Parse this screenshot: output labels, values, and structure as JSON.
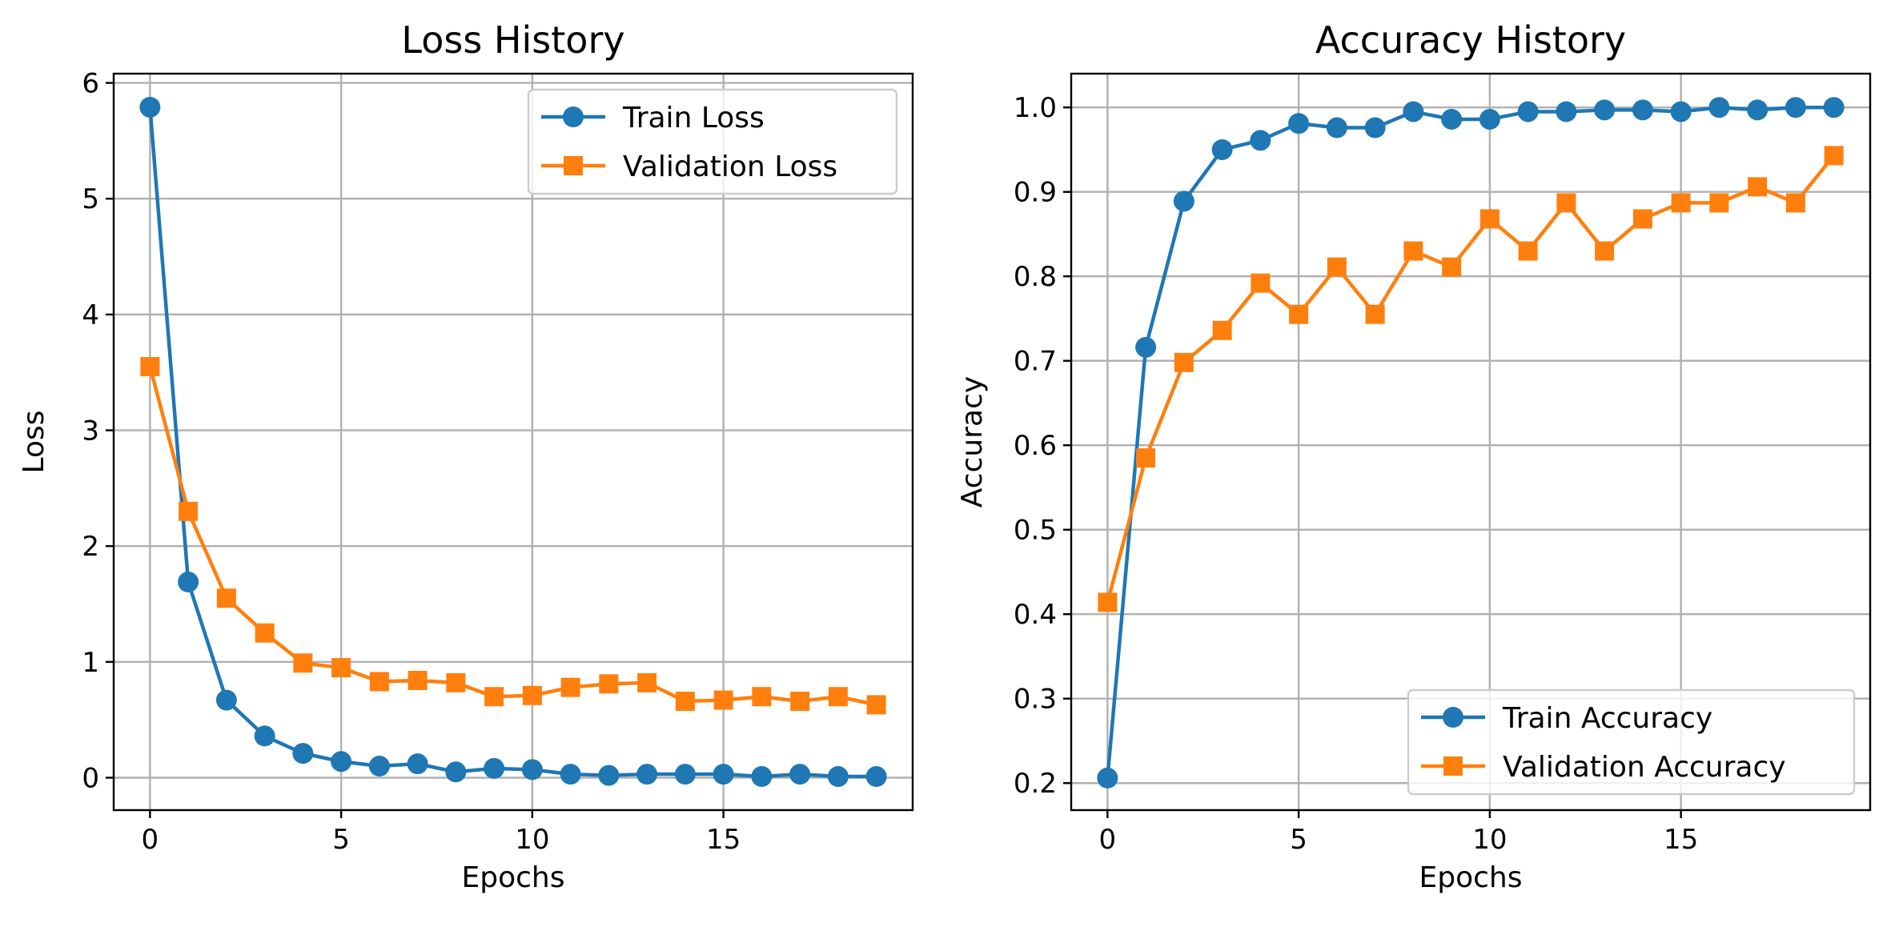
{
  "chart_data": [
    {
      "type": "line",
      "title": "Loss History",
      "xlabel": "Epochs",
      "ylabel": "Loss",
      "xlim": [
        -0.95,
        19.95
      ],
      "ylim": [
        -0.28,
        6.08
      ],
      "xticks": [
        0,
        5,
        10,
        15
      ],
      "yticks": [
        0,
        1,
        2,
        3,
        4,
        5,
        6
      ],
      "grid": true,
      "legend_position": "upper right",
      "x": [
        0,
        1,
        2,
        3,
        4,
        5,
        6,
        7,
        8,
        9,
        10,
        11,
        12,
        13,
        14,
        15,
        16,
        17,
        18,
        19
      ],
      "series": [
        {
          "name": "Train Loss",
          "color": "#1f77b4",
          "marker": "circle",
          "values": [
            5.79,
            1.69,
            0.67,
            0.36,
            0.21,
            0.14,
            0.1,
            0.12,
            0.05,
            0.08,
            0.07,
            0.03,
            0.02,
            0.03,
            0.03,
            0.03,
            0.01,
            0.03,
            0.01,
            0.01
          ]
        },
        {
          "name": "Validation Loss",
          "color": "#ff7f0e",
          "marker": "square",
          "values": [
            3.55,
            2.3,
            1.55,
            1.25,
            0.99,
            0.95,
            0.83,
            0.84,
            0.82,
            0.7,
            0.71,
            0.78,
            0.81,
            0.82,
            0.66,
            0.67,
            0.7,
            0.66,
            0.7,
            0.63
          ]
        }
      ]
    },
    {
      "type": "line",
      "title": "Accuracy History",
      "xlabel": "Epochs",
      "ylabel": "Accuracy",
      "xlim": [
        -0.95,
        19.95
      ],
      "ylim": [
        0.168,
        1.04
      ],
      "xticks": [
        0,
        5,
        10,
        15
      ],
      "yticks": [
        0.2,
        0.3,
        0.4,
        0.5,
        0.6,
        0.7,
        0.8,
        0.9,
        1.0
      ],
      "grid": true,
      "legend_position": "lower right",
      "x": [
        0,
        1,
        2,
        3,
        4,
        5,
        6,
        7,
        8,
        9,
        10,
        11,
        12,
        13,
        14,
        15,
        16,
        17,
        18,
        19
      ],
      "series": [
        {
          "name": "Train Accuracy",
          "color": "#1f77b4",
          "marker": "circle",
          "values": [
            0.206,
            0.716,
            0.889,
            0.95,
            0.961,
            0.981,
            0.976,
            0.976,
            0.995,
            0.986,
            0.986,
            0.995,
            0.995,
            0.997,
            0.997,
            0.995,
            1.0,
            0.997,
            1.0,
            1.0
          ]
        },
        {
          "name": "Validation Accuracy",
          "color": "#ff7f0e",
          "marker": "square",
          "values": [
            0.414,
            0.585,
            0.698,
            0.736,
            0.792,
            0.755,
            0.811,
            0.755,
            0.83,
            0.811,
            0.868,
            0.83,
            0.887,
            0.83,
            0.868,
            0.887,
            0.887,
            0.906,
            0.887,
            0.943
          ]
        }
      ]
    }
  ]
}
